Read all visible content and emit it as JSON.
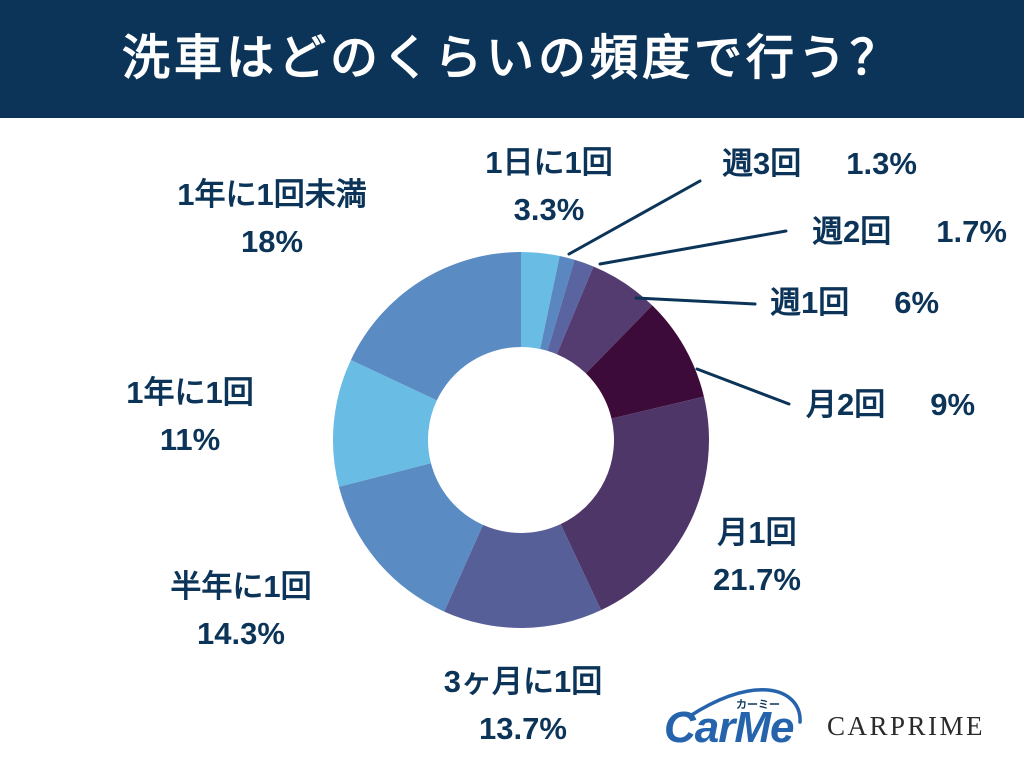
{
  "colors": {
    "navy": "#0c3458",
    "white": "#ffffff",
    "carme_blue": "#2563ad",
    "carprime_gray": "#2b2b2b"
  },
  "chart_data": {
    "type": "pie",
    "donut": true,
    "title": "洗車はどのくらいの頻度で行う？",
    "legend": "none",
    "categories": [
      "1日に1回",
      "週3回",
      "週2回",
      "週1回",
      "月2回",
      "月1回",
      "3ヶ月に1回",
      "半年に1回",
      "1年に1回",
      "1年に1回未満"
    ],
    "values": [
      3.3,
      1.3,
      1.7,
      6,
      9,
      21.7,
      13.7,
      14.3,
      11,
      18
    ],
    "value_labels": [
      "3.3%",
      "1.3%",
      "1.7%",
      "6%",
      "9%",
      "21.7%",
      "13.7%",
      "14.3%",
      "11%",
      "18%"
    ],
    "colors": [
      "#69bde5",
      "#5b87c0",
      "#5a64a0",
      "#543c70",
      "#3d0b39",
      "#4f3669",
      "#575f99",
      "#5b8bc3",
      "#69bde5",
      "#5b8bc3"
    ]
  },
  "logos": {
    "carme": "CarMe",
    "carme_kana": "カーミー",
    "carprime": "CARPRIME"
  }
}
